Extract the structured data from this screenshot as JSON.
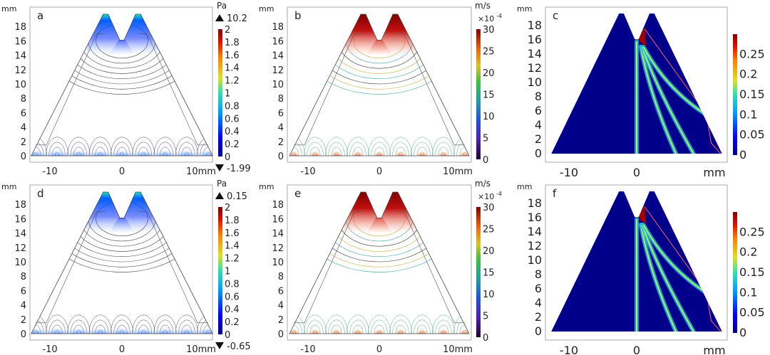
{
  "chart_data": [
    {
      "panel": "a",
      "type": "heatmap",
      "subtype": "contour",
      "unit": "Pa",
      "x_unit": "mm",
      "y_unit": "mm",
      "x_ticks": [
        "-10",
        "0",
        "10mm"
      ],
      "y_ticks": [
        "0",
        "2",
        "4",
        "6",
        "8",
        "10",
        "12",
        "14",
        "16",
        "18"
      ],
      "colorbar_ticks": [
        "0",
        "0.2",
        "0.4",
        "0.6",
        "0.8",
        "1",
        "1.2",
        "1.4",
        "1.6",
        "1.8",
        "2"
      ],
      "colorbar_range": [
        0,
        2
      ],
      "max_label": "10.2",
      "min_label": "-1.99",
      "colormap": "jet"
    },
    {
      "panel": "b",
      "type": "heatmap",
      "subtype": "contour",
      "unit": "m/s",
      "multiplier": "×10",
      "multiplier_exp": "-4",
      "x_unit": "mm",
      "y_unit": "mm",
      "x_ticks": [
        "-10",
        "0",
        "10mm"
      ],
      "y_ticks": [
        "0",
        "2",
        "4",
        "6",
        "8",
        "10",
        "12",
        "14",
        "16",
        "18"
      ],
      "colorbar_ticks": [
        "0",
        "5",
        "10",
        "15",
        "20",
        "25",
        "30"
      ],
      "colorbar_range": [
        0,
        30
      ],
      "colormap": "rainbow"
    },
    {
      "panel": "c",
      "type": "heatmap",
      "x_unit": "mm",
      "y_unit": "mm",
      "x_ticks": [
        "-10",
        "0",
        "mm"
      ],
      "y_ticks": [
        "0",
        "2",
        "4",
        "6",
        "8",
        "10",
        "12",
        "14",
        "16",
        "18"
      ],
      "colorbar_ticks": [
        "0",
        "0.05",
        "0.1",
        "0.15",
        "0.2",
        "0.25"
      ],
      "colorbar_range": [
        0,
        0.3
      ],
      "colormap": "jet"
    },
    {
      "panel": "d",
      "type": "heatmap",
      "subtype": "contour",
      "unit": "Pa",
      "x_unit": "mm",
      "y_unit": "mm",
      "x_ticks": [
        "-10",
        "0",
        "10mm"
      ],
      "y_ticks": [
        "0",
        "2",
        "4",
        "6",
        "8",
        "10",
        "12",
        "14",
        "16",
        "18"
      ],
      "colorbar_ticks": [
        "0",
        "0.2",
        "0.4",
        "0.6",
        "0.8",
        "1",
        "1.2",
        "1.4",
        "1.6",
        "1.8",
        "2"
      ],
      "colorbar_range": [
        0,
        2
      ],
      "max_label": "0.15",
      "min_label": "-0.65",
      "colormap": "jet"
    },
    {
      "panel": "e",
      "type": "heatmap",
      "subtype": "contour",
      "unit": "m/s",
      "multiplier": "×10",
      "multiplier_exp": "-4",
      "x_unit": "mm",
      "y_unit": "mm",
      "x_ticks": [
        "-10",
        "0",
        "10mm"
      ],
      "y_ticks": [
        "0",
        "2",
        "4",
        "6",
        "8",
        "10",
        "12",
        "14",
        "16",
        "18"
      ],
      "colorbar_ticks": [
        "0",
        "5",
        "10",
        "15",
        "20",
        "25",
        "30"
      ],
      "colorbar_range": [
        0,
        30
      ],
      "colormap": "rainbow"
    },
    {
      "panel": "f",
      "type": "heatmap",
      "x_unit": "mm",
      "y_unit": "mm",
      "x_ticks": [
        "-10",
        "0",
        "mm"
      ],
      "y_ticks": [
        "0",
        "2",
        "4",
        "6",
        "8",
        "10",
        "12",
        "14",
        "16",
        "18"
      ],
      "colorbar_ticks": [
        "0",
        "0.05",
        "0.1",
        "0.15",
        "0.2",
        "0.25"
      ],
      "colorbar_range": [
        0,
        0.3
      ],
      "colormap": "jet"
    }
  ]
}
